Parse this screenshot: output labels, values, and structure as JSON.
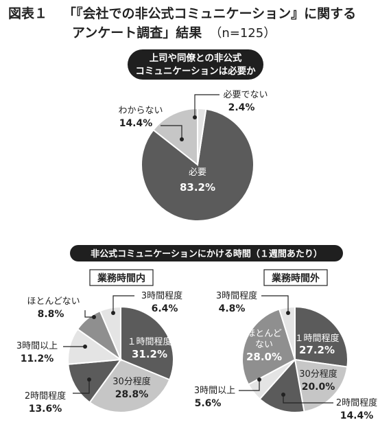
{
  "figure": {
    "number": "図表１",
    "title_line1": "「『会社での非公式コミュニケーション』に関する",
    "title_line2": "アンケート調査」結果",
    "sample": "（n=125）"
  },
  "colors": {
    "dark": "#5b5b5b",
    "mid": "#8f8f8f",
    "light": "#c6c6c6",
    "pale": "#e4e4e4",
    "pill": "#1f1f1f"
  },
  "chart_data": [
    {
      "type": "pie",
      "title": "上司や同僚との非公式\nコミュニケーションは必要か",
      "slices": [
        {
          "label": "必要",
          "value": 83.2,
          "display": "83.2%"
        },
        {
          "label": "わからない",
          "value": 14.4,
          "display": "14.4%"
        },
        {
          "label": "必要でない",
          "value": 2.4,
          "display": "2.4%"
        }
      ]
    },
    {
      "type": "pie",
      "title": "非公式コミュニケーションにかける時間（１週間あたり）",
      "subtitle": "業務時間内",
      "slices": [
        {
          "label": "１時間程度",
          "value": 31.2,
          "display": "31.2%"
        },
        {
          "label": "30分程度",
          "value": 28.8,
          "display": "28.8%"
        },
        {
          "label": "2時間程度",
          "value": 13.6,
          "display": "13.6%"
        },
        {
          "label": "3時間以上",
          "value": 11.2,
          "display": "11.2%"
        },
        {
          "label": "ほとんどない",
          "value": 8.8,
          "display": "8.8%"
        },
        {
          "label": "3時間程度",
          "value": 6.4,
          "display": "6.4%"
        }
      ]
    },
    {
      "type": "pie",
      "subtitle": "業務時間外",
      "slices": [
        {
          "label": "１時間程度",
          "value": 27.2,
          "display": "27.2%"
        },
        {
          "label": "30分程度",
          "value": 20.0,
          "display": "20.0%"
        },
        {
          "label": "2時間程度",
          "value": 14.4,
          "display": "14.4%"
        },
        {
          "label": "3時間以上",
          "value": 5.6,
          "display": "5.6%"
        },
        {
          "label": "ほとんどない",
          "value": 28.0,
          "display": "28.0%"
        },
        {
          "label": "3時間程度",
          "value": 4.8,
          "display": "4.8%"
        }
      ]
    }
  ]
}
